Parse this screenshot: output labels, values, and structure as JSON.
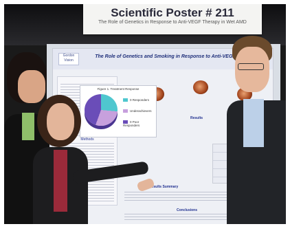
{
  "sign": {
    "title": "Scientific Poster # 211",
    "subtitle": "The Role of Genetics in Response to Anti-VEGF Therapy in Wet AMD"
  },
  "poster": {
    "title": "The Role of Genetics and Smoking in Response to Anti-VEGF Therapy",
    "results_label": "Results",
    "results_summary_label": "Results Summary",
    "conclusions_label": "Conclusions",
    "methods_label": "Methods",
    "chart_title": "Figure 1. Treatment Response",
    "chart_legend": [
      {
        "label": "0 Responders",
        "color": "#4fc7cf"
      },
      {
        "label": "Underachievers",
        "color": "#c7a0dd"
      },
      {
        "label": "0 Poor Responders",
        "color": "#6a4db8"
      }
    ]
  }
}
